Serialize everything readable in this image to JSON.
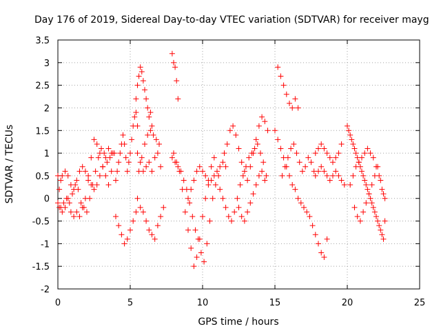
{
  "chart_data": {
    "type": "scatter",
    "title": "Day 176 of 2019, Sidereal Day-to-day VTEC variation (SDTVAR) for receiver mayg",
    "xlabel": "GPS time / hours",
    "ylabel": "SDTVAR / TECUs",
    "xlim": [
      0,
      25
    ],
    "ylim": [
      -2,
      3.5
    ],
    "xticks": [
      "0",
      "5",
      "10",
      "15",
      "20",
      "25"
    ],
    "yticks": [
      "-2",
      "-1.5",
      "-1",
      "-0.5",
      "0",
      "0.5",
      "1",
      "1.5",
      "2",
      "2.5",
      "3",
      "3.5"
    ],
    "grid": true,
    "marker": "+",
    "series": [
      {
        "name": "SDTVAR",
        "color": "#ff0000",
        "x": [
          0.0,
          0.1,
          0.2,
          0.3,
          0.5,
          0.7,
          0.9,
          1.1,
          1.3,
          1.5,
          1.7,
          1.9,
          2.1,
          2.3,
          2.5,
          2.7,
          2.9,
          3.1,
          3.3,
          3.5,
          3.7,
          3.9,
          0.0,
          0.2,
          0.4,
          0.6,
          0.8,
          1.0,
          1.2,
          1.4,
          1.6,
          1.8,
          2.0,
          2.2,
          2.4,
          2.6,
          2.8,
          3.0,
          3.2,
          3.4,
          3.6,
          3.8,
          0.1,
          0.3,
          0.5,
          0.7,
          0.9,
          1.1,
          1.3,
          1.5,
          1.7,
          1.9,
          2.1,
          2.3,
          2.5,
          2.7,
          2.9,
          3.1,
          3.3,
          3.5,
          3.7,
          4.0,
          4.1,
          4.2,
          4.3,
          4.4,
          4.5,
          4.6,
          4.7,
          4.8,
          4.9,
          5.0,
          5.1,
          5.2,
          5.3,
          5.4,
          5.5,
          4.0,
          4.2,
          4.4,
          4.6,
          4.8,
          5.0,
          5.2,
          5.4,
          5.4,
          5.5,
          5.6,
          5.7,
          5.8,
          5.9,
          6.0,
          6.1,
          6.2,
          6.3,
          6.4,
          6.5,
          5.5,
          5.7,
          5.9,
          6.1,
          6.3,
          6.5,
          6.7,
          6.9,
          7.1,
          7.3,
          5.6,
          5.8,
          6.0,
          6.2,
          6.4,
          6.6,
          6.8,
          7.0,
          5.5,
          5.7,
          5.9,
          6.1,
          6.3,
          6.5,
          6.7,
          6.9,
          7.1,
          7.9,
          8.0,
          8.1,
          8.2,
          8.3,
          7.9,
          8.1,
          8.3,
          8.5,
          8.7,
          8.9,
          9.1,
          9.3,
          9.5,
          9.7,
          9.9,
          10.1,
          10.3,
          10.5,
          10.7,
          10.9,
          11.1,
          8.0,
          8.2,
          8.4,
          8.6,
          8.8,
          9.0,
          9.2,
          9.4,
          9.6,
          9.8,
          10.0,
          10.2,
          10.4,
          10.6,
          10.8,
          9.0,
          9.2,
          9.4,
          9.6,
          9.8,
          10.0,
          10.2,
          10.4,
          10.6,
          10.8,
          11.0,
          11.2,
          11.4,
          11.6,
          11.5,
          11.7,
          11.9,
          12.1,
          12.3,
          12.5,
          12.7,
          12.9,
          13.1,
          13.3,
          13.5,
          13.7,
          13.9,
          14.1,
          14.3,
          14.5,
          11.2,
          11.4,
          11.6,
          11.8,
          12.0,
          12.2,
          12.4,
          12.6,
          12.8,
          13.0,
          13.2,
          13.4,
          13.6,
          13.8,
          14.0,
          14.2,
          14.4,
          12.5,
          12.7,
          12.9,
          13.1,
          13.3,
          13.5,
          13.7,
          13.9,
          14.1,
          14.3,
          15.2,
          15.4,
          15.6,
          15.8,
          16.0,
          16.2,
          16.4,
          16.6,
          15.0,
          15.2,
          15.4,
          15.6,
          15.8,
          16.0,
          16.2,
          16.4,
          16.6,
          16.8,
          17.0,
          17.2,
          17.4,
          17.6,
          17.8,
          18.0,
          18.2,
          18.4,
          18.6,
          15.5,
          15.7,
          15.9,
          16.1,
          16.3,
          16.5,
          16.7,
          16.9,
          17.1,
          17.3,
          17.5,
          17.7,
          17.8,
          18.0,
          18.2,
          18.4,
          18.6,
          18.8,
          19.0,
          19.2,
          19.4,
          19.6,
          19.8,
          17.8,
          18.0,
          18.2,
          18.4,
          18.6,
          18.8,
          19.0,
          19.2,
          19.4,
          19.6,
          20.0,
          20.1,
          20.2,
          20.3,
          20.4,
          20.5,
          20.6,
          20.7,
          20.8,
          20.9,
          21.0,
          21.1,
          21.2,
          21.3,
          21.4,
          21.5,
          21.6,
          21.7,
          21.8,
          21.9,
          22.0,
          22.1,
          22.2,
          22.3,
          22.4,
          22.5,
          22.6,
          20.2,
          20.4,
          20.6,
          20.8,
          21.0,
          21.2,
          21.4,
          21.6,
          21.8,
          22.0,
          22.2,
          22.4,
          22.6,
          20.5,
          20.7,
          20.9,
          21.1,
          21.3,
          21.5,
          21.7,
          21.9,
          22.1,
          22.3,
          22.5
        ],
        "y": [
          -0.1,
          0.2,
          0.4,
          0.5,
          0.6,
          0.5,
          0.3,
          0.2,
          0.4,
          0.6,
          0.7,
          0.6,
          0.5,
          0.3,
          0.2,
          0.3,
          0.5,
          0.7,
          0.9,
          1.1,
          1.0,
          1.0,
          0.5,
          -0.2,
          -0.1,
          0.0,
          -0.1,
          0.1,
          0.3,
          0.2,
          -0.1,
          -0.2,
          -0.3,
          0.0,
          0.3,
          0.6,
          0.9,
          1.1,
          1.0,
          0.8,
          0.9,
          1.0,
          -0.2,
          -0.3,
          -0.2,
          0.0,
          -0.3,
          -0.4,
          -0.3,
          -0.4,
          -0.2,
          0.0,
          0.4,
          0.9,
          1.3,
          1.2,
          1.0,
          0.7,
          0.5,
          0.3,
          0.6,
          0.4,
          0.6,
          0.8,
          1.0,
          1.2,
          1.4,
          1.2,
          0.9,
          0.6,
          0.8,
          1.0,
          1.3,
          1.6,
          1.8,
          1.9,
          1.6,
          -0.4,
          -0.6,
          -0.8,
          -1.0,
          -0.9,
          -0.7,
          -0.5,
          -0.3,
          2.2,
          2.5,
          2.7,
          2.9,
          2.8,
          2.6,
          2.4,
          2.2,
          2.0,
          1.8,
          1.9,
          1.6,
          0.0,
          -0.2,
          -0.3,
          -0.5,
          -0.7,
          -0.8,
          -0.9,
          -0.6,
          -0.4,
          -0.2,
          0.6,
          0.9,
          1.2,
          1.4,
          1.5,
          1.4,
          1.3,
          1.2,
          1.0,
          0.8,
          0.6,
          0.7,
          0.8,
          0.6,
          0.9,
          1.0,
          0.7,
          3.2,
          3.0,
          2.9,
          2.6,
          2.2,
          0.9,
          0.8,
          0.7,
          0.6,
          0.4,
          0.2,
          -0.1,
          -0.4,
          -0.7,
          -0.9,
          -1.2,
          -1.4,
          -1.0,
          -0.5,
          0.0,
          0.3,
          0.5,
          1.0,
          0.8,
          0.6,
          0.2,
          -0.3,
          -0.7,
          -1.1,
          -1.5,
          -1.3,
          -0.9,
          -0.4,
          0.0,
          0.4,
          0.7,
          0.9,
          0.0,
          0.2,
          0.4,
          0.6,
          0.7,
          0.6,
          0.5,
          0.3,
          0.4,
          0.5,
          0.6,
          0.7,
          0.8,
          0.7,
          1.0,
          1.2,
          1.5,
          1.6,
          1.4,
          1.1,
          0.8,
          0.6,
          0.4,
          0.7,
          1.0,
          1.3,
          1.6,
          1.8,
          1.7,
          1.5,
          0.2,
          0.0,
          -0.2,
          -0.4,
          -0.5,
          -0.3,
          0.0,
          0.3,
          0.5,
          0.7,
          0.9,
          1.0,
          1.1,
          1.2,
          1.0,
          0.8,
          0.5,
          -0.2,
          -0.4,
          -0.5,
          -0.3,
          -0.1,
          0.1,
          0.3,
          0.5,
          0.6,
          0.4,
          2.9,
          2.7,
          2.5,
          2.3,
          2.1,
          2.0,
          2.2,
          2.0,
          1.5,
          1.3,
          1.1,
          0.9,
          0.7,
          0.5,
          0.3,
          0.2,
          0.0,
          -0.1,
          -0.2,
          -0.3,
          -0.4,
          -0.6,
          -0.8,
          -1.0,
          -1.2,
          -1.3,
          -0.9,
          0.5,
          0.7,
          0.9,
          1.1,
          1.2,
          1.0,
          0.8,
          0.6,
          0.7,
          0.9,
          0.8,
          0.6,
          0.5,
          0.6,
          0.7,
          0.6,
          0.5,
          0.4,
          0.5,
          0.6,
          0.5,
          0.4,
          0.3,
          1.0,
          1.1,
          1.2,
          1.1,
          1.0,
          0.9,
          0.8,
          0.9,
          1.0,
          1.2,
          1.6,
          1.5,
          1.4,
          1.3,
          1.2,
          1.1,
          1.0,
          0.9,
          0.8,
          0.7,
          0.6,
          0.5,
          0.4,
          0.3,
          0.2,
          0.1,
          0.0,
          -0.1,
          -0.2,
          -0.3,
          -0.4,
          -0.5,
          -0.6,
          -0.7,
          -0.8,
          -0.9,
          -0.5,
          0.3,
          0.5,
          0.7,
          0.8,
          0.9,
          1.0,
          1.1,
          1.0,
          0.9,
          0.7,
          0.5,
          0.2,
          0.0,
          -0.2,
          -0.4,
          -0.5,
          -0.3,
          -0.1,
          0.1,
          0.3,
          0.5,
          0.7,
          0.4,
          0.1
        ]
      }
    ]
  }
}
